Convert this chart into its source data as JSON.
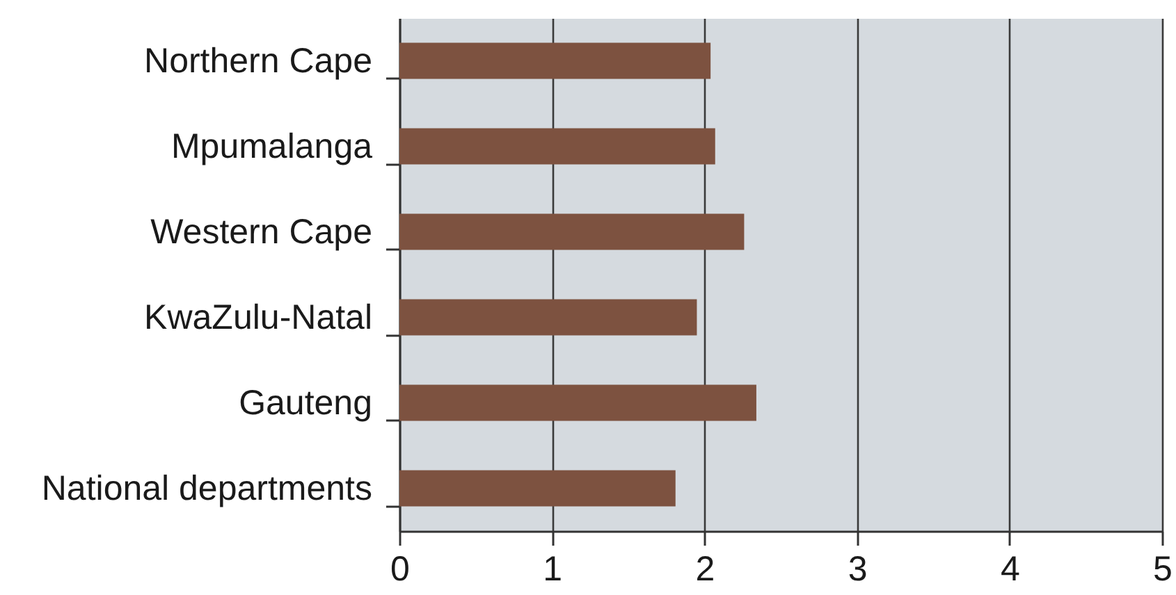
{
  "chart_data": {
    "type": "bar",
    "orientation": "horizontal",
    "categories": [
      "Northern Cape",
      "Mpumalanga",
      "Western Cape",
      "KwaZulu-Natal",
      "Gauteng",
      "National departments"
    ],
    "values": [
      2.04,
      2.07,
      2.26,
      1.95,
      2.34,
      1.81
    ],
    "color": "#7d5240",
    "xlim": [
      0,
      5
    ],
    "xticks": [
      0,
      1,
      2,
      3,
      4,
      5
    ],
    "grid": "x"
  }
}
